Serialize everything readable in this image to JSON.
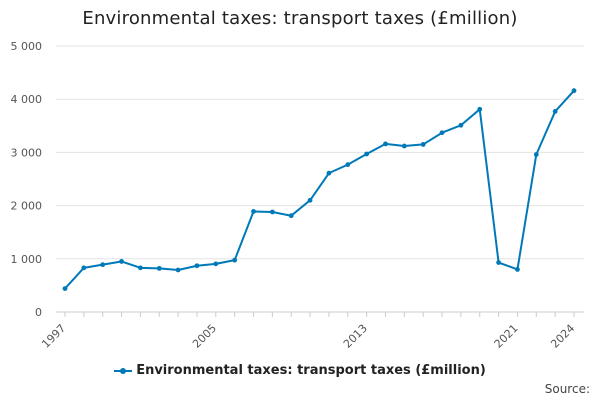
{
  "chart_data": {
    "type": "line",
    "title": "Environmental taxes: transport taxes (£million)",
    "xlabel": "",
    "ylabel": "",
    "x": [
      1997,
      1998,
      1999,
      2000,
      2001,
      2002,
      2003,
      2004,
      2005,
      2006,
      2007,
      2008,
      2009,
      2010,
      2011,
      2012,
      2013,
      2014,
      2015,
      2016,
      2017,
      2018,
      2019,
      2020,
      2021,
      2022,
      2023,
      2024
    ],
    "series": [
      {
        "name": "Environmental taxes: transport taxes (£million)",
        "color": "#0079b8",
        "values": [
          440,
          830,
          890,
          950,
          830,
          820,
          790,
          870,
          905,
          975,
          1890,
          1880,
          1810,
          2100,
          2610,
          2770,
          2970,
          3160,
          3120,
          3150,
          3370,
          3510,
          3810,
          930,
          800,
          2960,
          3770,
          4160
        ]
      }
    ],
    "xlim": [
      1997,
      2024
    ],
    "ylim": [
      0,
      5000
    ],
    "y_ticks": [
      0,
      1000,
      2000,
      3000,
      4000,
      5000
    ],
    "y_tick_labels": [
      "0",
      "1 000",
      "2 000",
      "3 000",
      "4 000",
      "5 000"
    ],
    "x_ticks": [
      1997,
      2005,
      2013,
      2021,
      2024
    ],
    "x_tick_labels": [
      "1997",
      "2005",
      "2013",
      "2021",
      "2024"
    ],
    "grid": true,
    "legend_position": "bottom",
    "source_label": "Source:"
  }
}
